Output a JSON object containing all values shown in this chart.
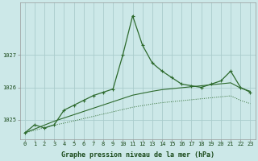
{
  "title": "Graphe pression niveau de la mer (hPa)",
  "bg_color": "#cce8e8",
  "grid_color": "#aacccc",
  "line_color": "#2d6a2d",
  "x_hours": [
    0,
    1,
    2,
    3,
    4,
    5,
    6,
    7,
    8,
    9,
    10,
    11,
    12,
    13,
    14,
    15,
    16,
    17,
    18,
    19,
    20,
    21,
    22,
    23
  ],
  "pressure_main": [
    1024.6,
    1024.85,
    1024.75,
    1024.85,
    1025.3,
    1025.45,
    1025.6,
    1025.75,
    1025.85,
    1025.95,
    1027.0,
    1028.2,
    1027.3,
    1026.75,
    1026.5,
    1026.3,
    1026.1,
    1026.05,
    1026.0,
    1026.1,
    1026.2,
    1026.5,
    1026.0,
    1025.85
  ],
  "pressure_line2": [
    1024.6,
    1024.72,
    1024.84,
    1024.96,
    1025.06,
    1025.16,
    1025.26,
    1025.36,
    1025.46,
    1025.56,
    1025.66,
    1025.76,
    1025.82,
    1025.88,
    1025.93,
    1025.96,
    1025.99,
    1026.02,
    1026.05,
    1026.08,
    1026.11,
    1026.14,
    1025.98,
    1025.88
  ],
  "pressure_line3": [
    1024.6,
    1024.68,
    1024.76,
    1024.84,
    1024.9,
    1024.97,
    1025.04,
    1025.11,
    1025.18,
    1025.25,
    1025.32,
    1025.39,
    1025.44,
    1025.49,
    1025.53,
    1025.56,
    1025.59,
    1025.62,
    1025.65,
    1025.68,
    1025.71,
    1025.74,
    1025.6,
    1025.5
  ],
  "ylim": [
    1024.4,
    1028.6
  ],
  "yticks": [
    1025,
    1026,
    1027
  ],
  "xlabel_fontsize": 6.0,
  "tick_fontsize": 5.0,
  "figsize": [
    3.2,
    2.0
  ],
  "dpi": 100
}
